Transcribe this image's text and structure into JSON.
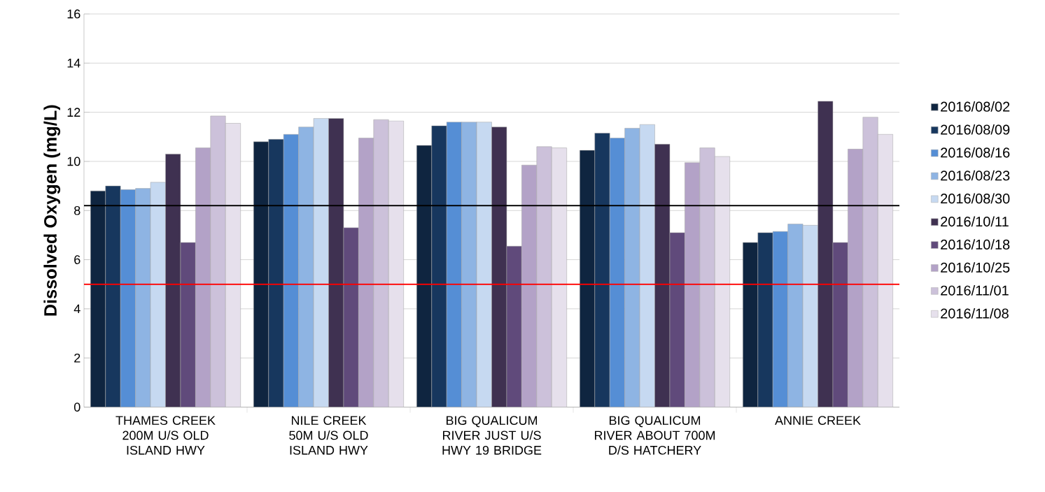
{
  "chart_data": {
    "type": "bar",
    "ylabel": "Dissolved Oxygen (mg/L)",
    "categories": [
      "THAMES CREEK 200M U/S OLD ISLAND HWY",
      "NILE CREEK 50M U/S OLD ISLAND HWY",
      "BIG QUALICUM RIVER JUST U/S HWY 19 BRIDGE",
      "BIG QUALICUM RIVER ABOUT 700M D/S HATCHERY",
      "ANNIE CREEK"
    ],
    "series": [
      {
        "name": "2016/08/02",
        "color": "#0f2540",
        "values": [
          8.8,
          10.8,
          10.65,
          10.45,
          6.7
        ]
      },
      {
        "name": "2016/08/09",
        "color": "#17375e",
        "values": [
          9.0,
          10.9,
          11.45,
          11.15,
          7.1
        ]
      },
      {
        "name": "2016/08/16",
        "color": "#558ed5",
        "values": [
          8.85,
          11.1,
          11.6,
          10.95,
          7.15
        ]
      },
      {
        "name": "2016/08/23",
        "color": "#8eb4e3",
        "values": [
          8.9,
          11.4,
          11.6,
          11.35,
          7.45
        ]
      },
      {
        "name": "2016/08/30",
        "color": "#c6d9f1",
        "values": [
          9.15,
          11.75,
          11.6,
          11.5,
          7.4
        ]
      },
      {
        "name": "2016/10/11",
        "color": "#3f3151",
        "values": [
          10.3,
          11.75,
          11.4,
          10.7,
          12.45
        ]
      },
      {
        "name": "2016/10/18",
        "color": "#604a7b",
        "values": [
          6.7,
          7.3,
          6.55,
          7.1,
          6.7
        ]
      },
      {
        "name": "2016/10/25",
        "color": "#b3a2c7",
        "values": [
          10.55,
          10.95,
          9.85,
          9.95,
          10.5
        ]
      },
      {
        "name": "2016/11/01",
        "color": "#ccc1da",
        "values": [
          11.85,
          11.7,
          10.6,
          10.55,
          11.8
        ]
      },
      {
        "name": "2016/11/08",
        "color": "#e6e0ec",
        "values": [
          11.55,
          11.65,
          10.55,
          10.2,
          11.1
        ]
      }
    ],
    "ylim": [
      0,
      16
    ],
    "yticks": [
      0,
      2,
      4,
      6,
      8,
      10,
      12,
      14,
      16
    ],
    "grid": "y",
    "legend": "right",
    "ref_lines": [
      {
        "axis": "y",
        "value": 8.2,
        "color": "#000000"
      },
      {
        "axis": "y",
        "value": 5,
        "color": "#ff0000"
      }
    ]
  }
}
